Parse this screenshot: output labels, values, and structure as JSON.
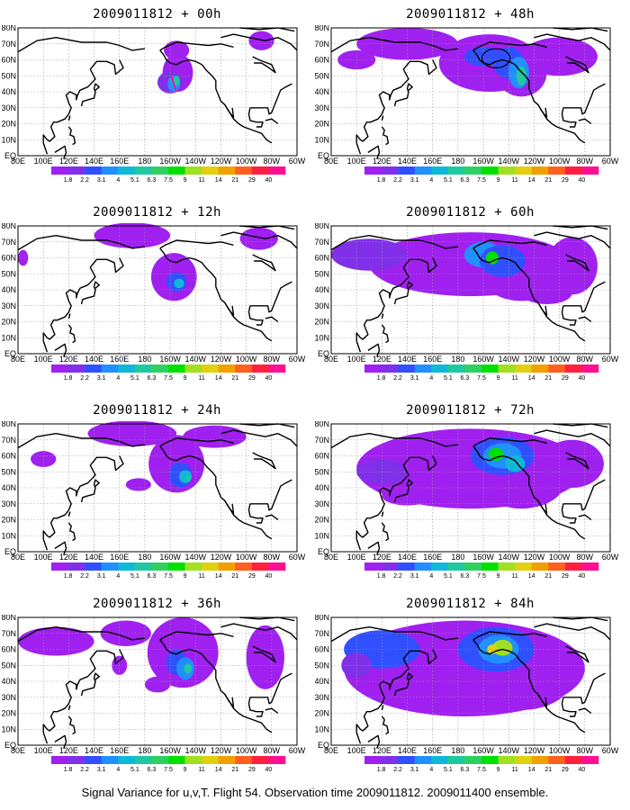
{
  "caption": "Signal Variance for u,v,T. Flight 54. Observation time 2009011812. 2009011400 ensemble.",
  "lon_labels": [
    "80E",
    "100E",
    "120E",
    "140E",
    "160E",
    "180",
    "160W",
    "140W",
    "120W",
    "100W",
    "80W",
    "60W"
  ],
  "lat_labels": [
    "EQ",
    "10N",
    "20N",
    "30N",
    "40N",
    "50N",
    "60N",
    "70N",
    "80N"
  ],
  "colorbar": {
    "levels": [
      "1.8",
      "2.2",
      "3.1",
      "4",
      "5.1",
      "6.3",
      "7.5",
      "9",
      "11",
      "14",
      "21",
      "29",
      "40"
    ],
    "colors": [
      "#a020f0",
      "#8030e8",
      "#3050ff",
      "#2090ff",
      "#10b8d8",
      "#20c8a0",
      "#30d060",
      "#00e000",
      "#a0e020",
      "#e0d010",
      "#f0a000",
      "#ff6020",
      "#ff2040",
      "#ff1090"
    ]
  },
  "chart_data": [
    {
      "type": "heatmap",
      "title": "2009011812 + 00h",
      "lead_hours": 0,
      "max_value_class": "5.1-6.3",
      "region": "North Pacific near 160W",
      "note": "track marker"
    },
    {
      "type": "heatmap",
      "title": "2009011812 + 12h",
      "lead_hours": 12,
      "max_value_class": "5.1-6.3",
      "region": "North Pacific 140W-170W"
    },
    {
      "type": "heatmap",
      "title": "2009011812 + 24h",
      "lead_hours": 24,
      "max_value_class": "6.3-7.5",
      "region": "North Pacific 140W-170W"
    },
    {
      "type": "heatmap",
      "title": "2009011812 + 36h",
      "lead_hours": 36,
      "max_value_class": "7.5-9",
      "region": "North Pacific to North America"
    },
    {
      "type": "heatmap",
      "title": "2009011812 + 48h",
      "lead_hours": 48,
      "max_value_class": "7.5-9",
      "region": "Pacific to North America",
      "note": "circled area near 150W 60N"
    },
    {
      "type": "heatmap",
      "title": "2009011812 + 60h",
      "lead_hours": 60,
      "max_value_class": "9-11",
      "region": "Asia to North America"
    },
    {
      "type": "heatmap",
      "title": "2009011812 + 72h",
      "lead_hours": 72,
      "max_value_class": "9-11",
      "region": "Asia to North America"
    },
    {
      "type": "heatmap",
      "title": "2009011812 + 84h",
      "lead_hours": 84,
      "max_value_class": "11-14",
      "region": "Asia to North America"
    }
  ],
  "panels": [
    {
      "title": "2009011812 + 00h"
    },
    {
      "title": "2009011812 + 12h"
    },
    {
      "title": "2009011812 + 24h"
    },
    {
      "title": "2009011812 + 36h"
    },
    {
      "title": "2009011812 + 48h"
    },
    {
      "title": "2009011812 + 60h"
    },
    {
      "title": "2009011812 + 72h"
    },
    {
      "title": "2009011812 + 84h"
    }
  ]
}
